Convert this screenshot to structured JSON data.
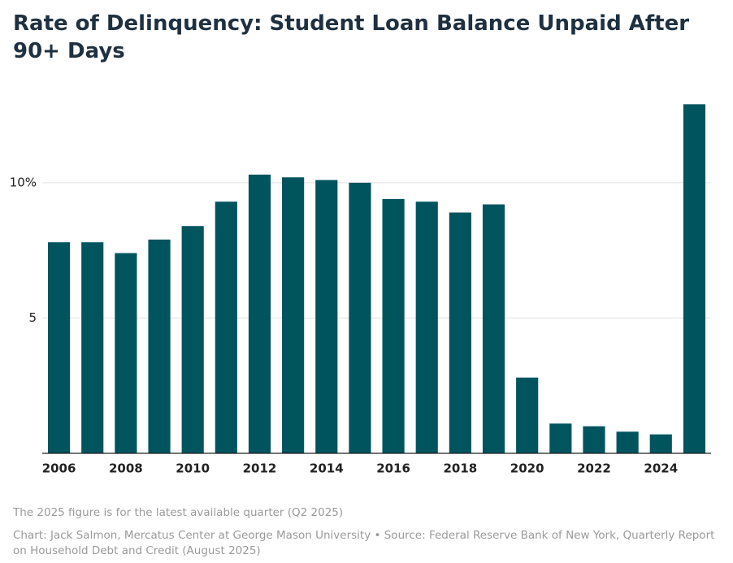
{
  "chart_data": {
    "type": "bar",
    "title": "Rate of Delinquency: Student Loan Balance Unpaid After 90+ Days",
    "categories": [
      "2006",
      null,
      "2008",
      null,
      "2010",
      null,
      "2012",
      null,
      "2014",
      null,
      "2016",
      null,
      "2018",
      null,
      "2020",
      null,
      "2022",
      null,
      "2024",
      null
    ],
    "values": [
      7.8,
      7.8,
      7.4,
      7.9,
      8.4,
      9.3,
      10.3,
      10.2,
      10.1,
      10.0,
      9.4,
      9.3,
      8.9,
      9.2,
      2.8,
      1.1,
      1.0,
      0.8,
      0.7,
      12.9
    ],
    "color": "#00545e",
    "ylim": [
      0,
      13
    ],
    "yticks": [
      {
        "value": 5,
        "label": "5"
      },
      {
        "value": 10,
        "label": "10%"
      }
    ],
    "grid": true,
    "note": "The 2025 figure is for the latest available quarter (Q2 2025)",
    "source": "Chart: Jack Salmon, Mercatus Center at George Mason University • Source: Federal Reserve Bank of New York, Quarterly Report on Household Debt and Credit (August 2025)"
  }
}
